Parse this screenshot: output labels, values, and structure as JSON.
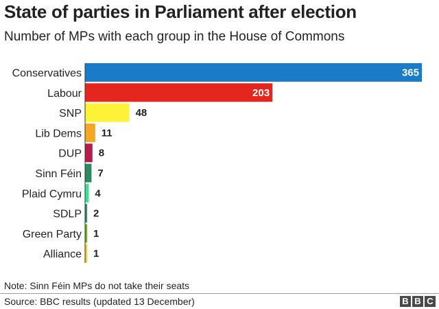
{
  "title": "State of parties in Parliament after election",
  "subtitle": "Number of MPs with each group in the House of Commons",
  "note": "Note: Sinn Féin MPs do not take their seats",
  "source": "Source: BBC results (updated 13 December)",
  "logo": [
    "B",
    "B",
    "C"
  ],
  "chart_data": {
    "type": "bar",
    "orientation": "horizontal",
    "title": "State of parties in Parliament after election",
    "subtitle": "Number of MPs with each group in the House of Commons",
    "categories": [
      "Conservatives",
      "Labour",
      "SNP",
      "Lib Dems",
      "DUP",
      "Sinn Féin",
      "Plaid Cymru",
      "SDLP",
      "Green Party",
      "Alliance"
    ],
    "values": [
      365,
      203,
      48,
      11,
      8,
      7,
      4,
      2,
      1,
      1
    ],
    "colors": [
      "#1a7bc8",
      "#e4261f",
      "#fef238",
      "#f5a623",
      "#b51c4b",
      "#2d8a5e",
      "#3be38f",
      "#3a8a63",
      "#6ab023",
      "#f6cb2f"
    ],
    "data_labels": [
      "365",
      "203",
      "48",
      "11",
      "8",
      "7",
      "4",
      "2",
      "1",
      "1"
    ],
    "xlim": [
      0,
      365
    ],
    "grid": false,
    "legend": "none"
  }
}
